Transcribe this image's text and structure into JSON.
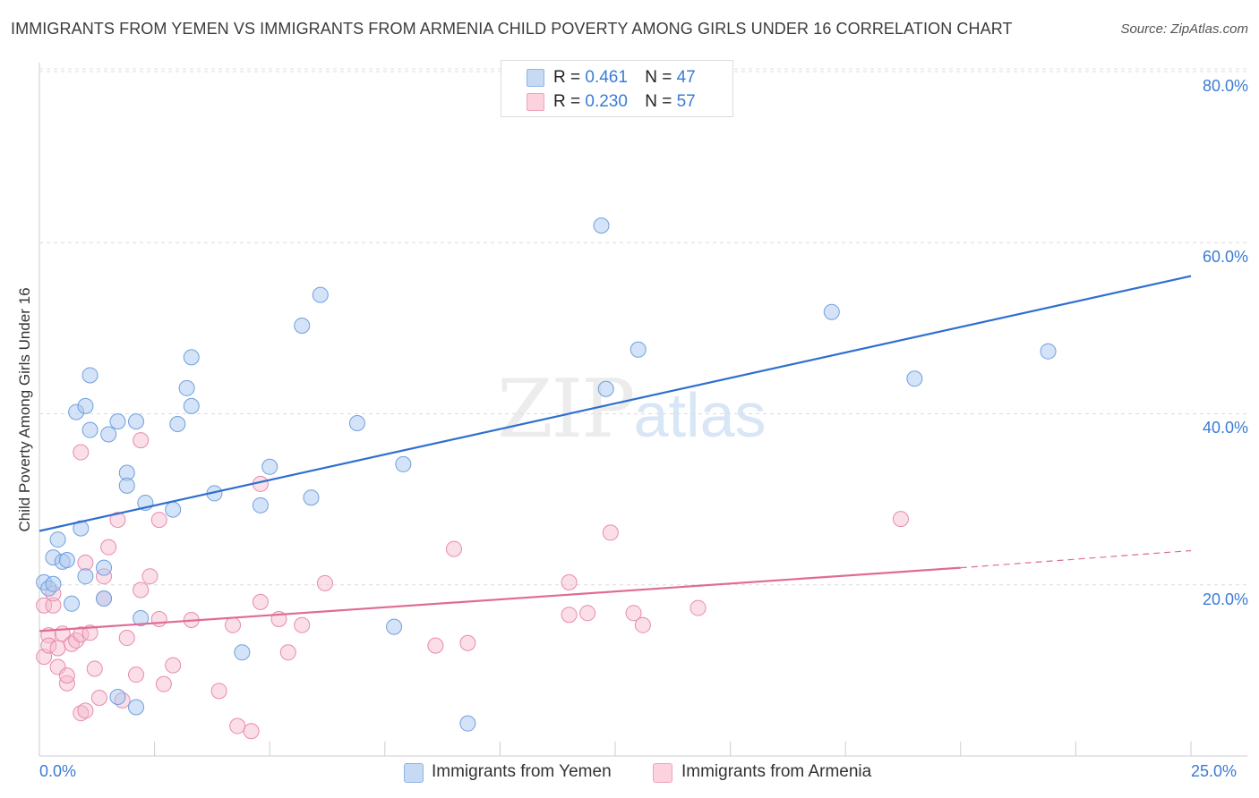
{
  "header": {
    "title": "IMMIGRANTS FROM YEMEN VS IMMIGRANTS FROM ARMENIA CHILD POVERTY AMONG GIRLS UNDER 16 CORRELATION CHART",
    "source": "Source: ZipAtlas.com"
  },
  "watermark": {
    "zip": "ZIP",
    "atlas": "atlas"
  },
  "legend": {
    "rows": [
      {
        "r_label": "R =",
        "r_value": "0.461",
        "n_label": "N =",
        "n_value": "47",
        "color": "#a9c8f0"
      },
      {
        "r_label": "R =",
        "r_value": "0.230",
        "n_label": "N =",
        "n_value": "57",
        "color": "#f5b8cb"
      }
    ]
  },
  "axes": {
    "ylabel": "Child Poverty Among Girls Under 16",
    "y_ticks": [
      "80.0%",
      "60.0%",
      "40.0%",
      "20.0%"
    ],
    "x_ticks": [
      "0.0%",
      "25.0%"
    ]
  },
  "bottom_legend": [
    "Immigrants from Yemen",
    "Immigrants from Armenia"
  ],
  "colors": {
    "yemen_fill": "#a9c8f0",
    "yemen_stroke": "#6fa0dd",
    "yemen_line": "#2f6fcf",
    "armenia_fill": "#f5b8cb",
    "armenia_stroke": "#e98aaa",
    "armenia_line": "#e06b98"
  },
  "chart_data": {
    "type": "scatter",
    "xlim": [
      0,
      25
    ],
    "ylim": [
      0,
      83
    ],
    "grid": true,
    "legend_position": "top-center",
    "series": [
      {
        "name": "Immigrants from Yemen",
        "r": 0.461,
        "n": 47,
        "trend": {
          "x": [
            0,
            25
          ],
          "y": [
            26.3,
            56.1
          ]
        },
        "points": [
          [
            0.1,
            20.3
          ],
          [
            0.2,
            19.6
          ],
          [
            0.3,
            23.2
          ],
          [
            0.4,
            25.3
          ],
          [
            0.5,
            22.7
          ],
          [
            0.6,
            22.9
          ],
          [
            0.7,
            17.8
          ],
          [
            0.8,
            40.2
          ],
          [
            0.9,
            26.6
          ],
          [
            1.0,
            21.0
          ],
          [
            1.0,
            40.9
          ],
          [
            1.1,
            44.5
          ],
          [
            1.1,
            38.1
          ],
          [
            1.4,
            22.0
          ],
          [
            1.4,
            18.4
          ],
          [
            1.5,
            37.6
          ],
          [
            1.7,
            39.1
          ],
          [
            1.9,
            33.1
          ],
          [
            1.9,
            31.6
          ],
          [
            2.1,
            39.1
          ],
          [
            2.2,
            16.1
          ],
          [
            2.3,
            29.6
          ],
          [
            2.9,
            28.8
          ],
          [
            3.0,
            38.8
          ],
          [
            3.2,
            43.0
          ],
          [
            3.3,
            40.9
          ],
          [
            3.3,
            46.6
          ],
          [
            3.8,
            30.7
          ],
          [
            4.4,
            12.1
          ],
          [
            4.8,
            29.3
          ],
          [
            5.0,
            33.8
          ],
          [
            5.7,
            50.3
          ],
          [
            5.9,
            30.2
          ],
          [
            6.1,
            53.9
          ],
          [
            6.9,
            38.9
          ],
          [
            7.7,
            15.1
          ],
          [
            7.9,
            34.1
          ],
          [
            9.3,
            3.8
          ],
          [
            12.2,
            62.0
          ],
          [
            12.3,
            42.9
          ],
          [
            13.0,
            47.5
          ],
          [
            17.2,
            51.9
          ],
          [
            19.0,
            44.1
          ],
          [
            21.9,
            47.3
          ],
          [
            1.7,
            6.9
          ],
          [
            2.1,
            5.7
          ],
          [
            0.3,
            20.1
          ]
        ]
      },
      {
        "name": "Immigrants from Armenia",
        "r": 0.23,
        "n": 57,
        "trend": {
          "x": [
            0,
            20
          ],
          "y": [
            14.6,
            22.0
          ]
        },
        "trend_dashed": {
          "x": [
            20,
            25
          ],
          "y": [
            22.0,
            24.0
          ]
        },
        "points": [
          [
            0.1,
            17.6
          ],
          [
            0.1,
            11.6
          ],
          [
            0.2,
            14.1
          ],
          [
            0.2,
            12.9
          ],
          [
            0.3,
            17.6
          ],
          [
            0.3,
            19.0
          ],
          [
            0.4,
            12.6
          ],
          [
            0.4,
            10.4
          ],
          [
            0.5,
            14.3
          ],
          [
            0.6,
            8.5
          ],
          [
            0.6,
            9.4
          ],
          [
            0.7,
            13.1
          ],
          [
            0.8,
            13.5
          ],
          [
            0.9,
            14.2
          ],
          [
            0.9,
            5.0
          ],
          [
            0.9,
            35.5
          ],
          [
            1.0,
            5.3
          ],
          [
            1.0,
            22.6
          ],
          [
            1.1,
            14.4
          ],
          [
            1.2,
            10.2
          ],
          [
            1.3,
            6.8
          ],
          [
            1.4,
            21.0
          ],
          [
            1.4,
            18.4
          ],
          [
            1.5,
            24.4
          ],
          [
            1.7,
            27.6
          ],
          [
            1.8,
            6.5
          ],
          [
            1.9,
            13.8
          ],
          [
            2.1,
            9.5
          ],
          [
            2.2,
            19.4
          ],
          [
            2.2,
            36.9
          ],
          [
            2.4,
            21.0
          ],
          [
            2.6,
            16.0
          ],
          [
            2.6,
            27.6
          ],
          [
            2.7,
            8.4
          ],
          [
            2.9,
            10.6
          ],
          [
            3.3,
            15.9
          ],
          [
            3.9,
            7.6
          ],
          [
            4.2,
            15.3
          ],
          [
            4.3,
            3.5
          ],
          [
            4.6,
            2.9
          ],
          [
            4.8,
            18.0
          ],
          [
            4.8,
            31.8
          ],
          [
            5.2,
            16.0
          ],
          [
            5.4,
            12.1
          ],
          [
            5.7,
            15.3
          ],
          [
            6.2,
            20.2
          ],
          [
            8.6,
            12.9
          ],
          [
            9.0,
            24.2
          ],
          [
            9.3,
            13.2
          ],
          [
            11.5,
            20.3
          ],
          [
            11.5,
            16.5
          ],
          [
            11.9,
            16.7
          ],
          [
            12.4,
            26.1
          ],
          [
            12.9,
            16.7
          ],
          [
            13.1,
            15.3
          ],
          [
            14.3,
            17.3
          ],
          [
            18.7,
            27.7
          ]
        ]
      }
    ]
  }
}
